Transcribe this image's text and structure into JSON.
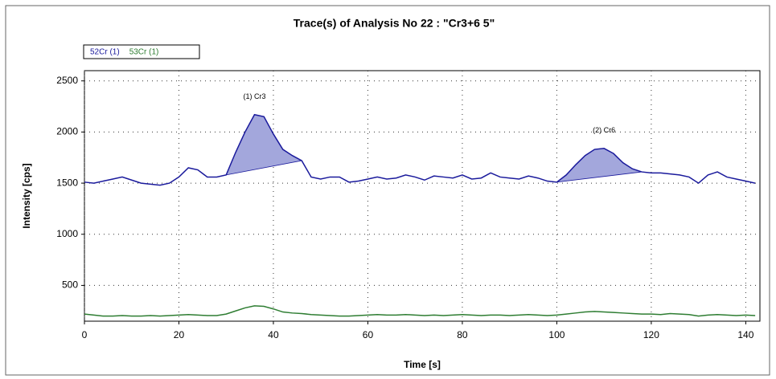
{
  "chart_data": {
    "type": "line",
    "title": "Trace(s) of Analysis No 22 : \"Cr3+6  5\"",
    "x_label": "Time [s]",
    "y_label": "Intensity [cps]",
    "x": [
      0,
      2,
      4,
      6,
      8,
      10,
      12,
      14,
      16,
      18,
      20,
      22,
      24,
      26,
      28,
      30,
      32,
      34,
      36,
      38,
      40,
      42,
      44,
      46,
      48,
      50,
      52,
      54,
      56,
      58,
      60,
      62,
      64,
      66,
      68,
      70,
      72,
      74,
      76,
      78,
      80,
      82,
      84,
      86,
      88,
      90,
      92,
      94,
      96,
      98,
      100,
      102,
      104,
      106,
      108,
      110,
      112,
      114,
      116,
      118,
      120,
      122,
      124,
      126,
      128,
      130,
      132,
      134,
      136,
      138,
      140,
      142
    ],
    "series": [
      {
        "name": "52Cr (1)",
        "color": "#1a1a9c",
        "values": [
          1510,
          1500,
          1520,
          1540,
          1560,
          1530,
          1500,
          1490,
          1480,
          1500,
          1560,
          1650,
          1630,
          1560,
          1560,
          1580,
          1800,
          2000,
          2170,
          2150,
          1980,
          1830,
          1770,
          1720,
          1560,
          1540,
          1560,
          1560,
          1510,
          1520,
          1540,
          1560,
          1540,
          1550,
          1580,
          1560,
          1530,
          1570,
          1560,
          1550,
          1580,
          1540,
          1550,
          1600,
          1560,
          1550,
          1540,
          1570,
          1550,
          1520,
          1510,
          1580,
          1680,
          1770,
          1830,
          1840,
          1790,
          1700,
          1640,
          1610,
          1600,
          1600,
          1590,
          1580,
          1560,
          1500,
          1580,
          1610,
          1560,
          1540,
          1520,
          1500
        ]
      },
      {
        "name": "53Cr (1)",
        "color": "#2e7d32",
        "values": [
          220,
          210,
          200,
          200,
          205,
          200,
          200,
          205,
          200,
          205,
          210,
          215,
          210,
          205,
          205,
          220,
          250,
          280,
          300,
          295,
          270,
          240,
          230,
          225,
          215,
          210,
          205,
          200,
          200,
          205,
          210,
          215,
          210,
          210,
          215,
          210,
          205,
          210,
          205,
          210,
          215,
          210,
          205,
          210,
          210,
          205,
          210,
          215,
          210,
          205,
          210,
          220,
          230,
          240,
          245,
          240,
          235,
          230,
          225,
          220,
          220,
          215,
          225,
          220,
          215,
          200,
          210,
          215,
          210,
          205,
          210,
          205
        ]
      }
    ],
    "peaks": [
      {
        "label": "(1) Cr3",
        "start": 30,
        "end": 46
      },
      {
        "label": "(2) Cr6",
        "start": 100,
        "end": 118
      }
    ],
    "peak_fill": "#a3a7dc",
    "xlim": [
      0,
      143
    ],
    "xticks": [
      0,
      20,
      40,
      60,
      80,
      100,
      120,
      140
    ],
    "ylim": [
      150,
      2600
    ],
    "yticks": [
      500,
      1000,
      1500,
      2000,
      2500
    ],
    "grid": true
  }
}
